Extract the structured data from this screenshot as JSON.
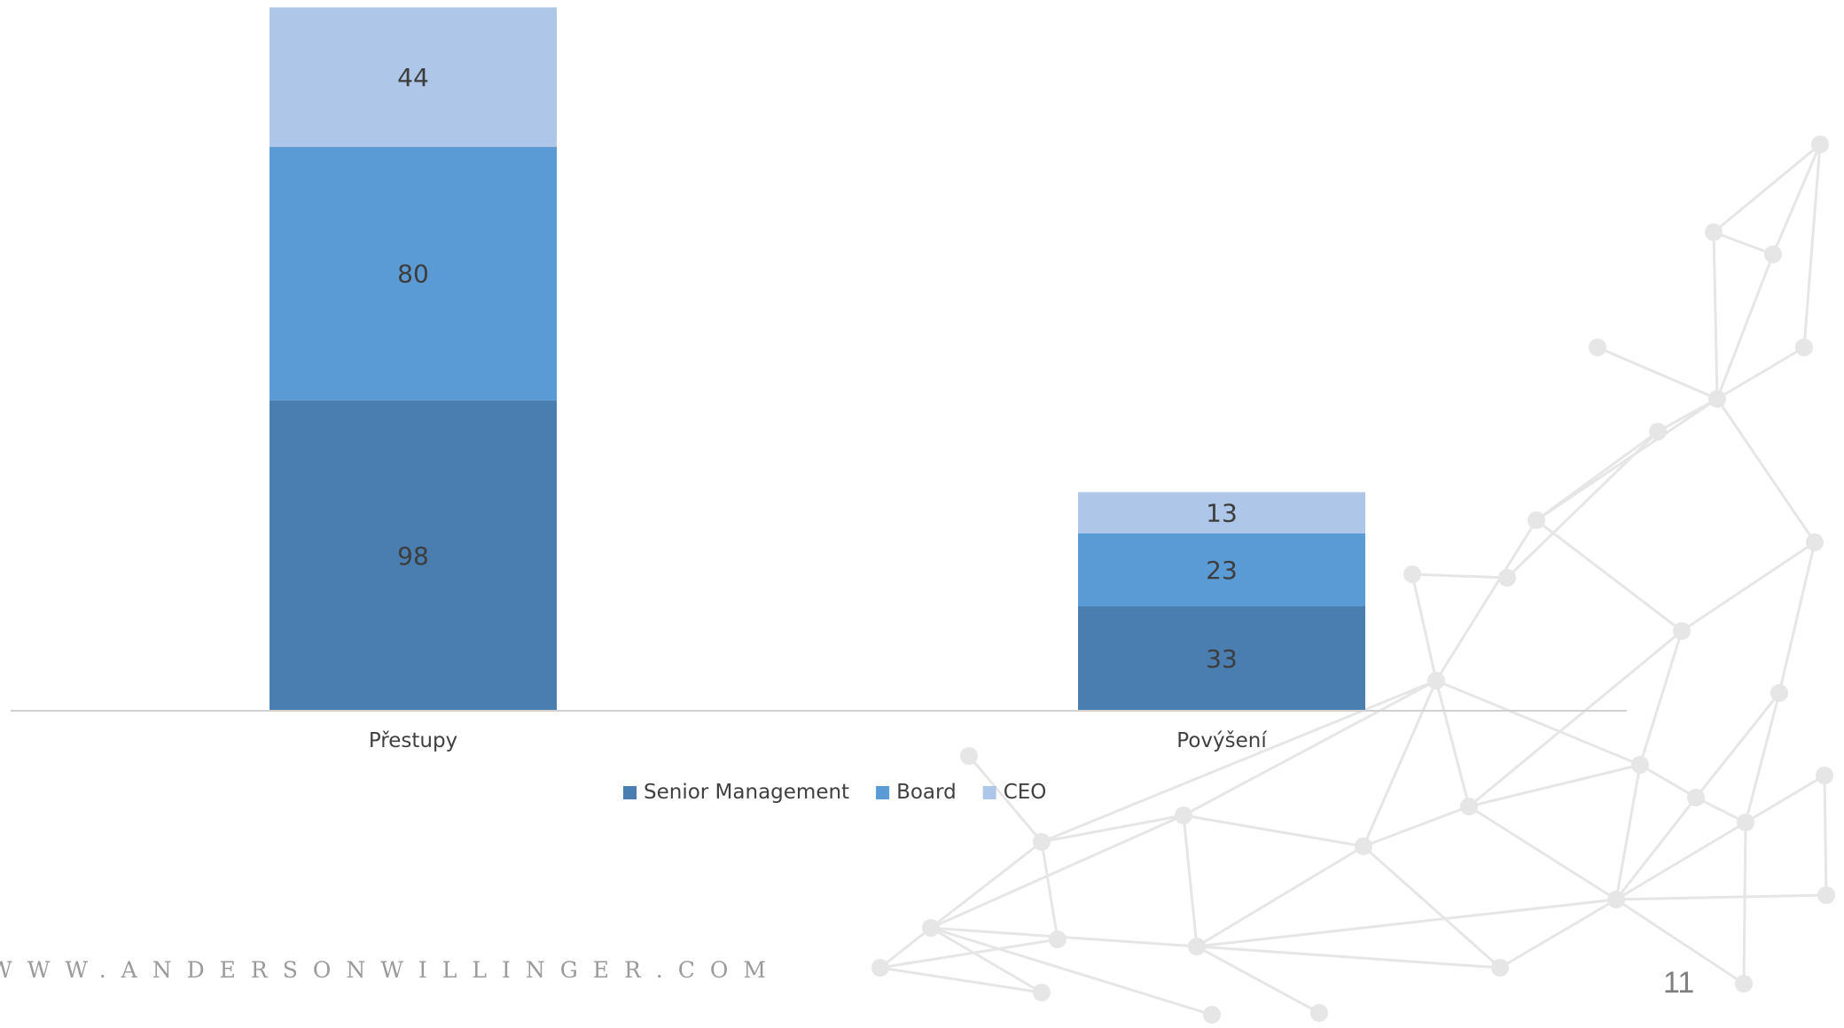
{
  "slide": {
    "website": "WWW.ANDERSONWILLINGER.COM",
    "page_number": "11"
  },
  "background": {
    "decoration_icon": "network-graph",
    "color": "#e6e6e6"
  },
  "chart_data": {
    "type": "bar",
    "stacked": true,
    "title": "",
    "xlabel": "",
    "ylabel": "",
    "categories": [
      "Přestupy",
      "Povýšení"
    ],
    "series": [
      {
        "name": "Senior Management",
        "values": [
          98,
          33
        ],
        "color": "#4a7eb0"
      },
      {
        "name": "Board",
        "values": [
          80,
          23
        ],
        "color": "#5b9bd5"
      },
      {
        "name": "CEO",
        "values": [
          44,
          13
        ],
        "color": "#aec6e7"
      }
    ],
    "data_labels": true,
    "grid": false,
    "legend": "bottom"
  }
}
